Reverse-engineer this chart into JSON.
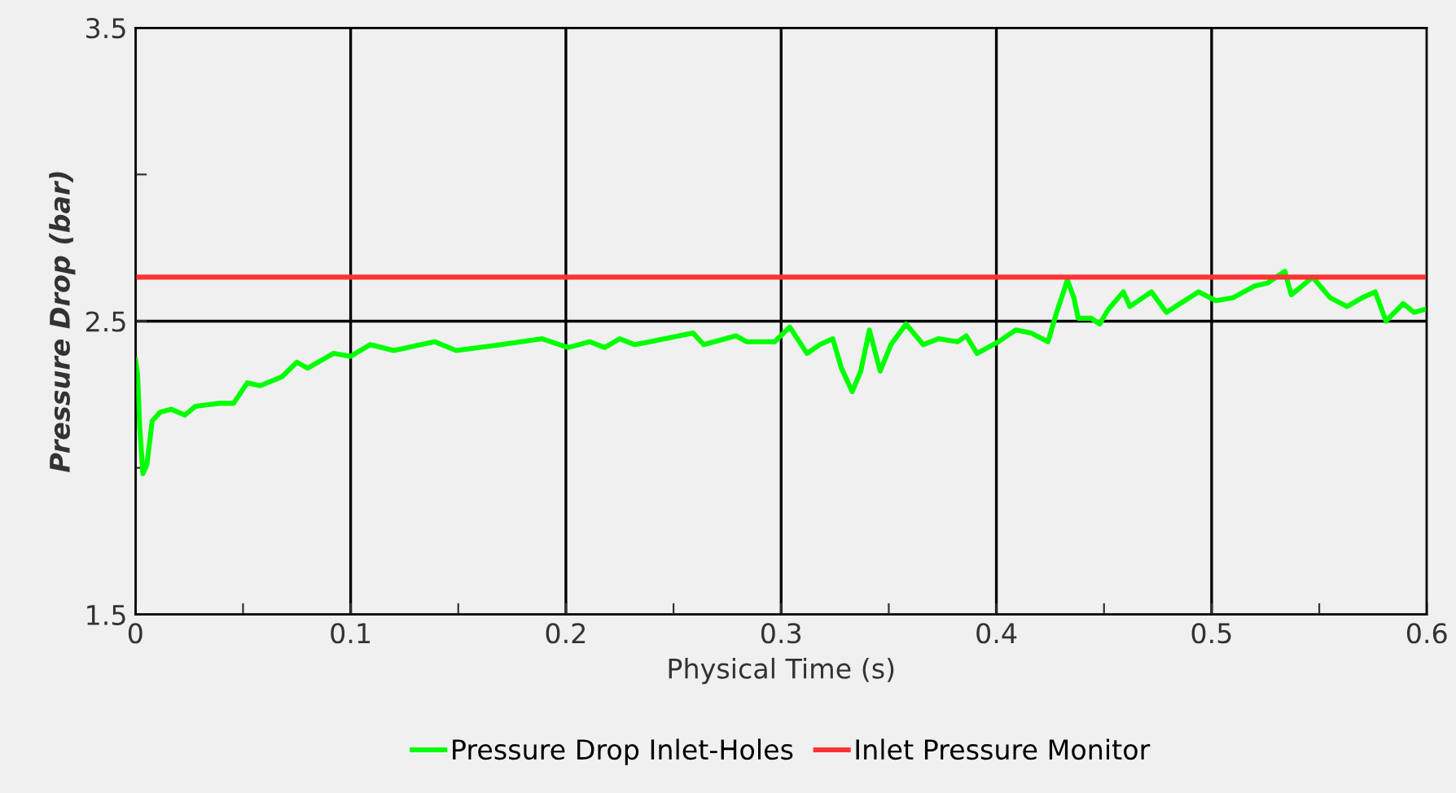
{
  "chart_data": {
    "type": "line",
    "xlabel": "Physical Time (s)",
    "ylabel": "Pressure Drop (bar)",
    "xlim": [
      0,
      0.6
    ],
    "ylim": [
      1.5,
      3.5
    ],
    "xticks": [
      0,
      {
        "value": 0.05,
        "label": null
      },
      0.1,
      {
        "value": 0.15,
        "label": null
      },
      0.2,
      {
        "value": 0.25,
        "label": null
      },
      0.3,
      {
        "value": 0.35,
        "label": null
      },
      0.4,
      {
        "value": 0.45,
        "label": null
      },
      0.5,
      {
        "value": 0.55,
        "label": null
      },
      0.6
    ],
    "yticks": [
      1.5,
      {
        "value": 2,
        "label": null
      },
      2.5,
      {
        "value": 3,
        "label": null
      },
      3.5
    ],
    "grid": true,
    "legend": "bottom",
    "marker": "none",
    "line_style": "solid",
    "series": [
      {
        "name": "Pressure Drop Inlet-Holes",
        "color": "#00ff00",
        "x": [
          0.0,
          0.001,
          0.002,
          0.0035,
          0.0053,
          0.0078,
          0.0116,
          0.0166,
          0.0229,
          0.028,
          0.039,
          0.0456,
          0.052,
          0.058,
          0.068,
          0.075,
          0.08,
          0.092,
          0.1,
          0.109,
          0.12,
          0.139,
          0.149,
          0.17,
          0.189,
          0.201,
          0.211,
          0.218,
          0.225,
          0.232,
          0.239,
          0.259,
          0.264,
          0.279,
          0.284,
          0.297,
          0.304,
          0.312,
          0.318,
          0.324,
          0.328,
          0.333,
          0.337,
          0.341,
          0.346,
          0.351,
          0.358,
          0.366,
          0.373,
          0.382,
          0.386,
          0.391,
          0.401,
          0.409,
          0.416,
          0.424,
          0.428,
          0.433,
          0.436,
          0.438,
          0.444,
          0.448,
          0.452,
          0.459,
          0.462,
          0.472,
          0.479,
          0.494,
          0.502,
          0.51,
          0.52,
          0.526,
          0.534,
          0.537,
          0.547,
          0.555,
          0.563,
          0.57,
          0.576,
          0.581,
          0.585,
          0.589,
          0.594,
          0.599
        ],
        "values": [
          2.37,
          2.32,
          2.14,
          1.98,
          2.01,
          2.16,
          2.19,
          2.2,
          2.18,
          2.21,
          2.22,
          2.22,
          2.29,
          2.28,
          2.31,
          2.36,
          2.34,
          2.39,
          2.38,
          2.42,
          2.4,
          2.43,
          2.4,
          2.42,
          2.44,
          2.41,
          2.43,
          2.41,
          2.44,
          2.42,
          2.43,
          2.46,
          2.42,
          2.45,
          2.43,
          2.43,
          2.48,
          2.39,
          2.42,
          2.44,
          2.34,
          2.26,
          2.33,
          2.47,
          2.33,
          2.42,
          2.49,
          2.42,
          2.44,
          2.43,
          2.45,
          2.39,
          2.43,
          2.47,
          2.46,
          2.43,
          2.53,
          2.64,
          2.58,
          2.51,
          2.51,
          2.49,
          2.54,
          2.6,
          2.55,
          2.6,
          2.53,
          2.6,
          2.57,
          2.58,
          2.62,
          2.63,
          2.67,
          2.59,
          2.65,
          2.58,
          2.55,
          2.58,
          2.6,
          2.5,
          2.53,
          2.56,
          2.53,
          2.54
        ]
      },
      {
        "name": "Inlet Pressure Monitor",
        "color": "#ff3333",
        "x": [
          0,
          0.6
        ],
        "values": [
          2.65,
          2.65
        ]
      }
    ]
  }
}
